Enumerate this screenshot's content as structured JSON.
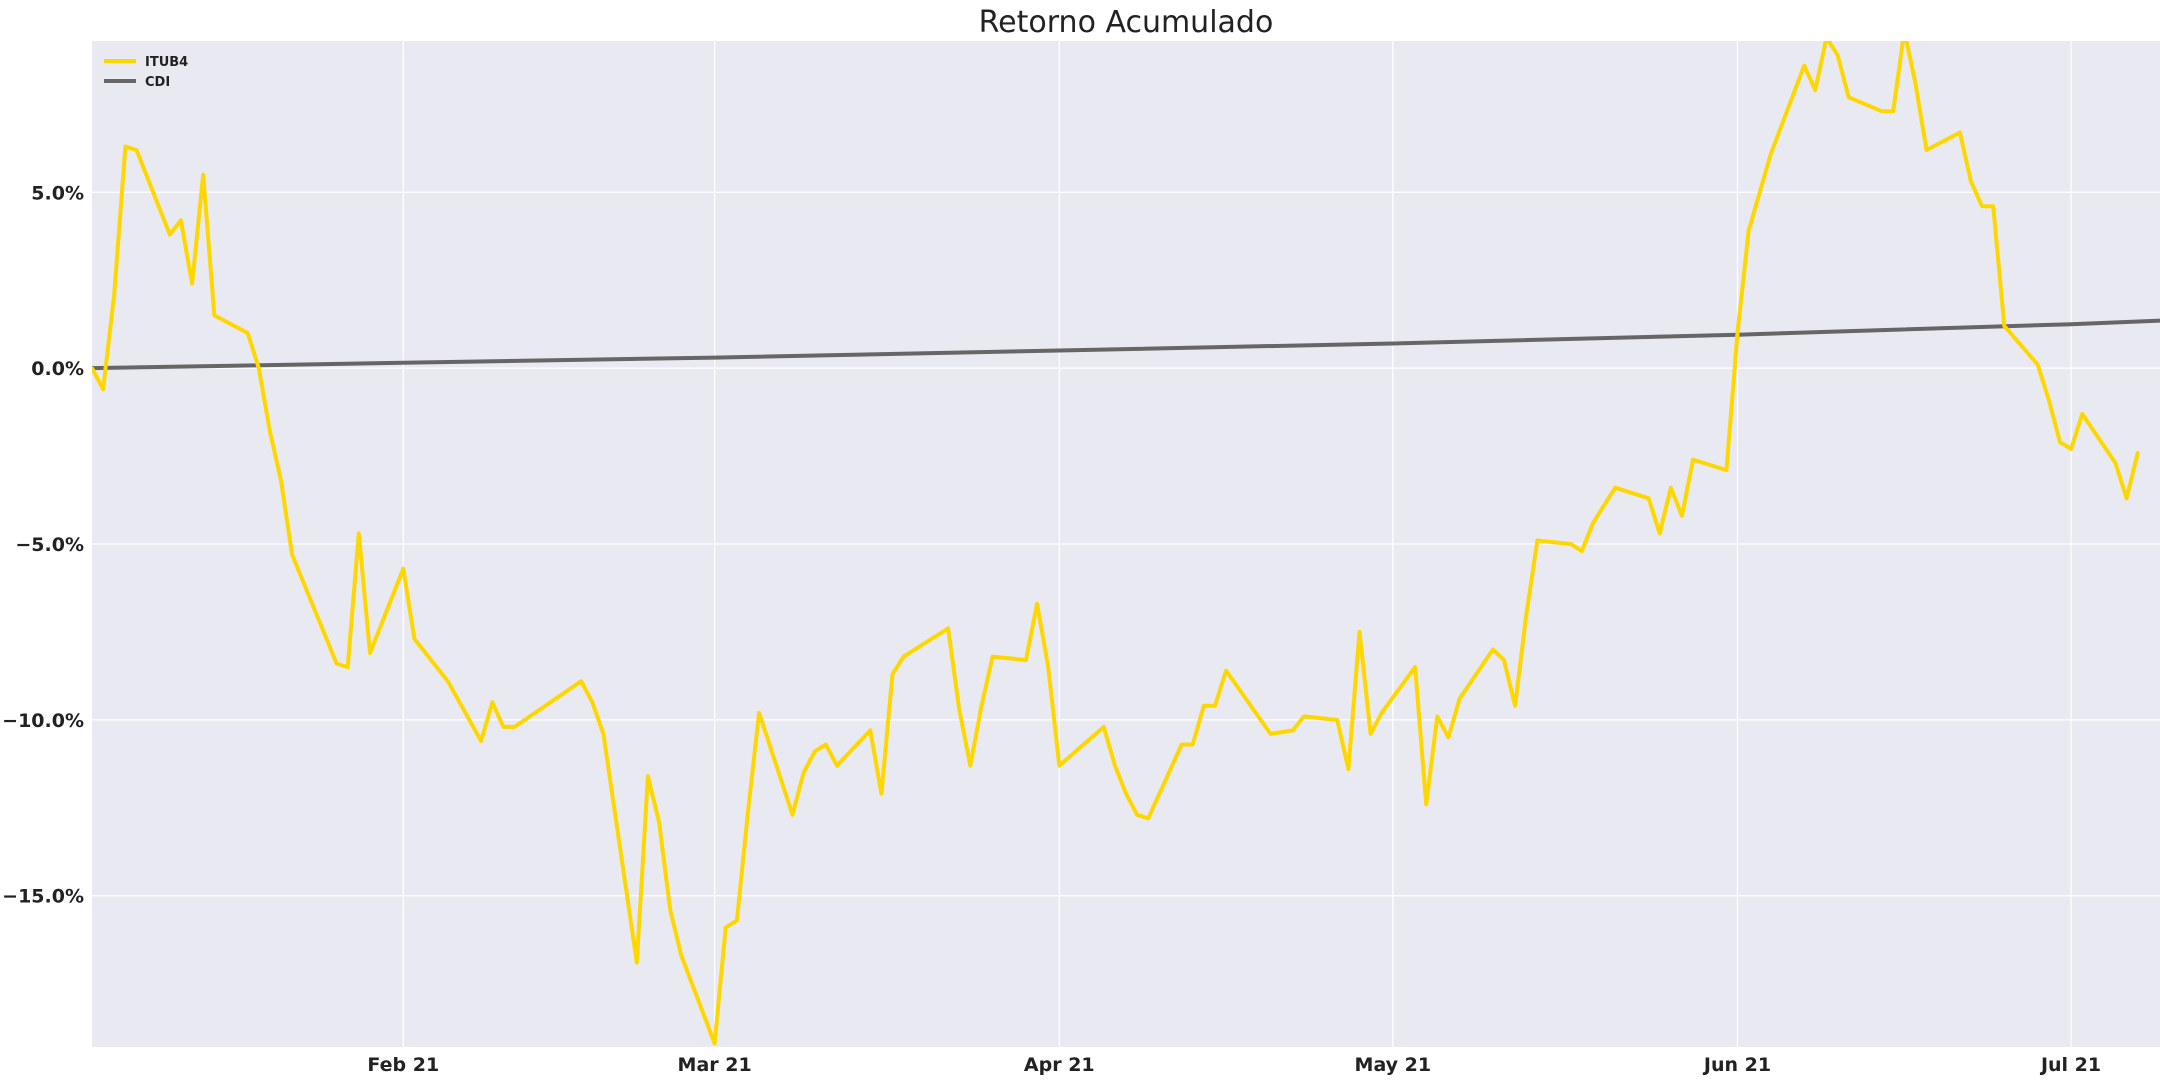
{
  "colors": {
    "itub4": "#FFD700",
    "cdi": "#666666",
    "plot_bg": "#E9E9F1",
    "grid": "#FFFFFF"
  },
  "chart_data": {
    "type": "line",
    "title": "Retorno Acumulado",
    "xlabel": "",
    "ylabel": "",
    "x_range": [
      "2021-01-04",
      "2021-07-09"
    ],
    "ylim": [
      -19.3,
      9.3
    ],
    "y_ticks": [
      {
        "value": 5,
        "label": "5.0%"
      },
      {
        "value": 0,
        "label": "0.0%"
      },
      {
        "value": -5,
        "label": "−5.0%"
      },
      {
        "value": -10,
        "label": "−10.0%"
      },
      {
        "value": -15,
        "label": "−15.0%"
      }
    ],
    "x_ticks": [
      {
        "date": "2021-02-01",
        "label": "Feb 21"
      },
      {
        "date": "2021-03-01",
        "label": "Mar 21"
      },
      {
        "date": "2021-04-01",
        "label": "Apr 21"
      },
      {
        "date": "2021-05-01",
        "label": "May 21"
      },
      {
        "date": "2021-06-01",
        "label": "Jun 21"
      },
      {
        "date": "2021-07-01",
        "label": "Jul 21"
      }
    ],
    "grid": true,
    "legend_position": "top-left",
    "series": [
      {
        "name": "ITUB4",
        "color": "#FFD700",
        "points": [
          [
            "2021-01-04",
            0.0
          ],
          [
            "2021-01-05",
            -0.6
          ],
          [
            "2021-01-06",
            2.1
          ],
          [
            "2021-01-07",
            6.3
          ],
          [
            "2021-01-08",
            6.2
          ],
          [
            "2021-01-11",
            3.8
          ],
          [
            "2021-01-12",
            4.2
          ],
          [
            "2021-01-13",
            2.4
          ],
          [
            "2021-01-14",
            5.5
          ],
          [
            "2021-01-15",
            1.5
          ],
          [
            "2021-01-18",
            1.0
          ],
          [
            "2021-01-19",
            0.0
          ],
          [
            "2021-01-20",
            -1.8
          ],
          [
            "2021-01-21",
            -3.2
          ],
          [
            "2021-01-22",
            -5.3
          ],
          [
            "2021-01-26",
            -8.4
          ],
          [
            "2021-01-27",
            -8.5
          ],
          [
            "2021-01-28",
            -4.7
          ],
          [
            "2021-01-29",
            -8.1
          ],
          [
            "2021-02-01",
            -5.7
          ],
          [
            "2021-02-02",
            -7.7
          ],
          [
            "2021-02-03",
            -8.1
          ],
          [
            "2021-02-05",
            -8.9
          ],
          [
            "2021-02-08",
            -10.6
          ],
          [
            "2021-02-09",
            -9.5
          ],
          [
            "2021-02-10",
            -10.2
          ],
          [
            "2021-02-11",
            -10.2
          ],
          [
            "2021-02-17",
            -8.9
          ],
          [
            "2021-02-18",
            -9.5
          ],
          [
            "2021-02-19",
            -10.4
          ],
          [
            "2021-02-22",
            -16.9
          ],
          [
            "2021-02-23",
            -11.6
          ],
          [
            "2021-02-24",
            -12.9
          ],
          [
            "2021-02-25",
            -15.4
          ],
          [
            "2021-02-26",
            -16.7
          ],
          [
            "2021-03-01",
            -19.2
          ],
          [
            "2021-03-02",
            -15.9
          ],
          [
            "2021-03-03",
            -15.7
          ],
          [
            "2021-03-04",
            -12.6
          ],
          [
            "2021-03-05",
            -9.8
          ],
          [
            "2021-03-08",
            -12.7
          ],
          [
            "2021-03-09",
            -11.5
          ],
          [
            "2021-03-10",
            -10.9
          ],
          [
            "2021-03-11",
            -10.7
          ],
          [
            "2021-03-12",
            -11.3
          ],
          [
            "2021-03-15",
            -10.3
          ],
          [
            "2021-03-16",
            -12.1
          ],
          [
            "2021-03-17",
            -8.7
          ],
          [
            "2021-03-18",
            -8.2
          ],
          [
            "2021-03-22",
            -7.4
          ],
          [
            "2021-03-23",
            -9.7
          ],
          [
            "2021-03-24",
            -11.3
          ],
          [
            "2021-03-25",
            -9.6
          ],
          [
            "2021-03-26",
            -8.2
          ],
          [
            "2021-03-29",
            -8.3
          ],
          [
            "2021-03-30",
            -6.7
          ],
          [
            "2021-03-31",
            -8.5
          ],
          [
            "2021-04-01",
            -11.3
          ],
          [
            "2021-04-05",
            -10.2
          ],
          [
            "2021-04-06",
            -11.3
          ],
          [
            "2021-04-07",
            -12.1
          ],
          [
            "2021-04-08",
            -12.7
          ],
          [
            "2021-04-09",
            -12.8
          ],
          [
            "2021-04-12",
            -10.7
          ],
          [
            "2021-04-13",
            -10.7
          ],
          [
            "2021-04-14",
            -9.6
          ],
          [
            "2021-04-15",
            -9.6
          ],
          [
            "2021-04-16",
            -8.6
          ],
          [
            "2021-04-20",
            -10.4
          ],
          [
            "2021-04-22",
            -10.3
          ],
          [
            "2021-04-23",
            -9.9
          ],
          [
            "2021-04-26",
            -10.0
          ],
          [
            "2021-04-27",
            -11.4
          ],
          [
            "2021-04-28",
            -7.5
          ],
          [
            "2021-04-29",
            -10.4
          ],
          [
            "2021-04-30",
            -9.8
          ],
          [
            "2021-05-03",
            -8.5
          ],
          [
            "2021-05-04",
            -12.4
          ],
          [
            "2021-05-05",
            -9.9
          ],
          [
            "2021-05-06",
            -10.5
          ],
          [
            "2021-05-07",
            -9.4
          ],
          [
            "2021-05-10",
            -8.0
          ],
          [
            "2021-05-11",
            -8.3
          ],
          [
            "2021-05-12",
            -9.6
          ],
          [
            "2021-05-13",
            -7.0
          ],
          [
            "2021-05-14",
            -4.9
          ],
          [
            "2021-05-17",
            -5.0
          ],
          [
            "2021-05-18",
            -5.2
          ],
          [
            "2021-05-19",
            -4.4
          ],
          [
            "2021-05-20",
            -3.9
          ],
          [
            "2021-05-21",
            -3.4
          ],
          [
            "2021-05-24",
            -3.7
          ],
          [
            "2021-05-25",
            -4.7
          ],
          [
            "2021-05-26",
            -3.4
          ],
          [
            "2021-05-27",
            -4.2
          ],
          [
            "2021-05-28",
            -2.6
          ],
          [
            "2021-05-31",
            -2.9
          ],
          [
            "2021-06-01",
            1.0
          ],
          [
            "2021-06-02",
            3.9
          ],
          [
            "2021-06-04",
            6.1
          ],
          [
            "2021-06-07",
            8.6
          ],
          [
            "2021-06-08",
            7.9
          ],
          [
            "2021-06-09",
            9.4
          ],
          [
            "2021-06-10",
            8.9
          ],
          [
            "2021-06-11",
            7.7
          ],
          [
            "2021-06-14",
            7.3
          ],
          [
            "2021-06-15",
            7.3
          ],
          [
            "2021-06-16",
            9.6
          ],
          [
            "2021-06-17",
            8.1
          ],
          [
            "2021-06-18",
            6.2
          ],
          [
            "2021-06-21",
            6.7
          ],
          [
            "2021-06-22",
            5.3
          ],
          [
            "2021-06-23",
            4.6
          ],
          [
            "2021-06-24",
            4.6
          ],
          [
            "2021-06-25",
            1.2
          ],
          [
            "2021-06-28",
            0.1
          ],
          [
            "2021-06-29",
            -0.9
          ],
          [
            "2021-06-30",
            -2.1
          ],
          [
            "2021-07-01",
            -2.3
          ],
          [
            "2021-07-02",
            -1.3
          ],
          [
            "2021-07-05",
            -2.7
          ],
          [
            "2021-07-06",
            -3.7
          ],
          [
            "2021-07-07",
            -2.4
          ]
        ]
      },
      {
        "name": "CDI",
        "color": "#666666",
        "points": [
          [
            "2021-01-04",
            0.0
          ],
          [
            "2021-02-01",
            0.15
          ],
          [
            "2021-03-01",
            0.3
          ],
          [
            "2021-04-01",
            0.5
          ],
          [
            "2021-05-01",
            0.7
          ],
          [
            "2021-06-01",
            0.95
          ],
          [
            "2021-07-01",
            1.25
          ],
          [
            "2021-07-09",
            1.35
          ]
        ]
      }
    ]
  }
}
